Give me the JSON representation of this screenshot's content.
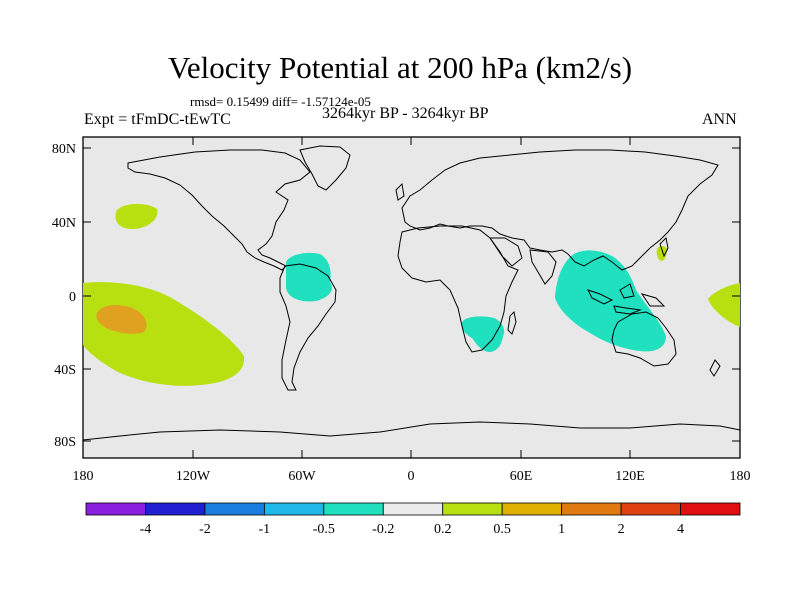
{
  "title": "Velocity Potential at 200 hPa (km2/s)",
  "stats_line": "rmsd= 0.15499 diff= -1.57124e-05",
  "left_label": "Expt = tFmDC-tEwTC",
  "center_label": "3264kyr BP - 3264kyr BP",
  "right_label": "ANN",
  "lat_ticks": [
    "80N",
    "40N",
    "0",
    "40S",
    "80S"
  ],
  "lon_ticks": [
    "180",
    "120W",
    "60W",
    "0",
    "60E",
    "120E",
    "180"
  ],
  "colorbar": {
    "colors": [
      "#8a20e0",
      "#2020d0",
      "#1a7ee0",
      "#20b8e8",
      "#20e0c0",
      "#ebebeb",
      "#b8e010",
      "#e0b000",
      "#e07a10",
      "#e04010",
      "#e01010"
    ],
    "labels": [
      "-4",
      "-2",
      "-1",
      "-0.5",
      "-0.2",
      "0.2",
      "0.5",
      "1",
      "2",
      "4"
    ]
  },
  "colors": {
    "background": "#e8e8e8",
    "lime": "#b8e010",
    "orange": "#e0a020",
    "cyan": "#20e0c0"
  }
}
